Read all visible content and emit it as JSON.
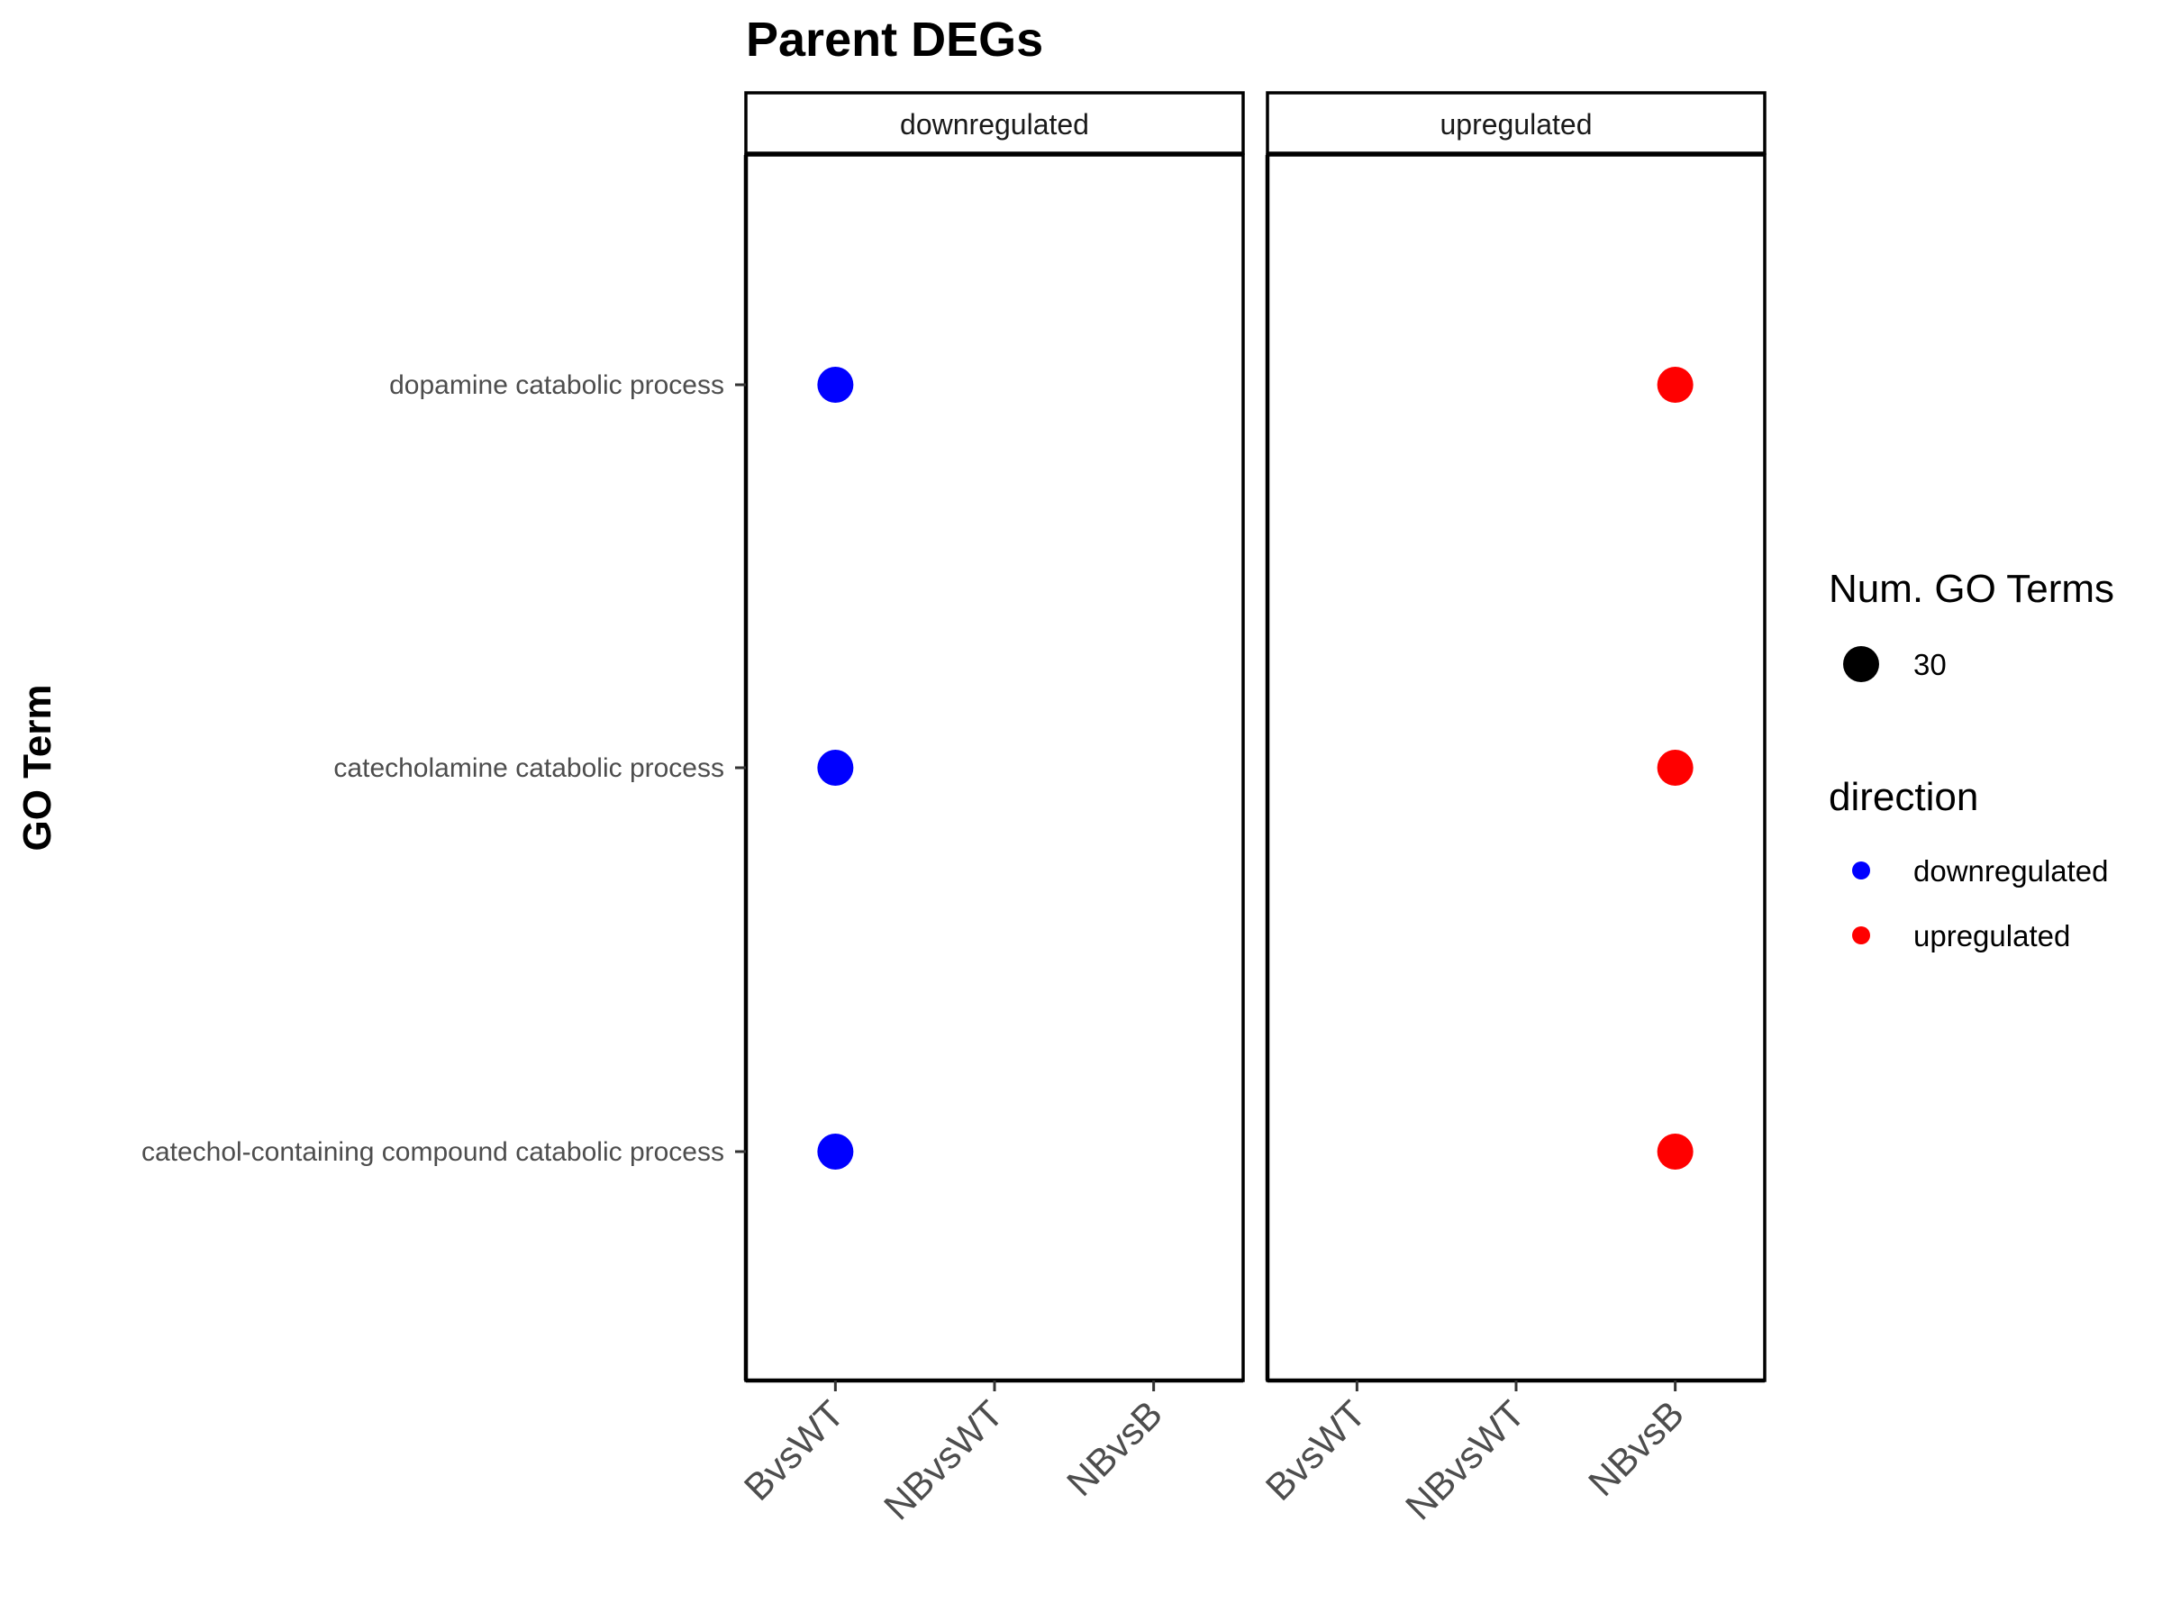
{
  "chart_data": {
    "type": "scatter",
    "title": "Parent DEGs",
    "xlabel": "",
    "ylabel": "GO Term",
    "facets": [
      "downregulated",
      "upregulated"
    ],
    "categories": [
      "BvsWT",
      "NBvsWT",
      "NBvsB"
    ],
    "terms": [
      "dopamine catabolic process",
      "catecholamine catabolic process",
      "catechol-containing compound catabolic process"
    ],
    "points": [
      {
        "facet": "downregulated",
        "x": "BvsWT",
        "term": "dopamine catabolic process",
        "direction": "downregulated",
        "size": 30
      },
      {
        "facet": "downregulated",
        "x": "BvsWT",
        "term": "catecholamine catabolic process",
        "direction": "downregulated",
        "size": 30
      },
      {
        "facet": "downregulated",
        "x": "BvsWT",
        "term": "catechol-containing compound catabolic process",
        "direction": "downregulated",
        "size": 30
      },
      {
        "facet": "upregulated",
        "x": "NBvsB",
        "term": "dopamine catabolic process",
        "direction": "upregulated",
        "size": 30
      },
      {
        "facet": "upregulated",
        "x": "NBvsB",
        "term": "catecholamine catabolic process",
        "direction": "upregulated",
        "size": 30
      },
      {
        "facet": "upregulated",
        "x": "NBvsB",
        "term": "catechol-containing compound catabolic process",
        "direction": "upregulated",
        "size": 30
      }
    ],
    "legend": {
      "placement": "right",
      "size_title": "Num. GO Terms",
      "size_entries": [
        {
          "label": "30",
          "value": 30
        }
      ],
      "color_title": "direction",
      "color_entries": [
        {
          "label": "downregulated",
          "color": "#0000ff"
        },
        {
          "label": "upregulated",
          "color": "#ff0000"
        }
      ]
    },
    "colors": {
      "downregulated": "#0000ff",
      "upregulated": "#ff0000"
    },
    "grid": false
  }
}
